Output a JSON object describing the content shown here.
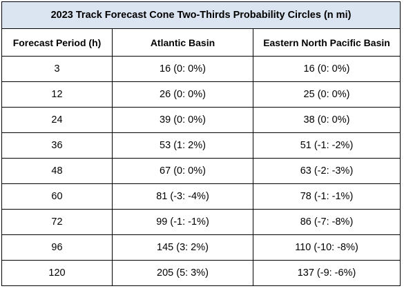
{
  "table": {
    "title": "2023 Track Forecast Cone Two-Thirds Probability Circles (n mi)",
    "headers": [
      "Forecast Period (h)",
      "Atlantic Basin",
      "Eastern North Pacific Basin"
    ],
    "rows": [
      {
        "period": "3",
        "atlantic": "16 (0: 0%)",
        "pacific": "16 (0: 0%)"
      },
      {
        "period": "12",
        "atlantic": "26 (0: 0%)",
        "pacific": "25 (0: 0%)"
      },
      {
        "period": "24",
        "atlantic": "39 (0: 0%)",
        "pacific": "38 (0: 0%)"
      },
      {
        "period": "36",
        "atlantic": "53 (1: 2%)",
        "pacific": "51 (-1: -2%)"
      },
      {
        "period": "48",
        "atlantic": "67 (0: 0%)",
        "pacific": "63 (-2: -3%)"
      },
      {
        "period": "60",
        "atlantic": "81 (-3: -4%)",
        "pacific": "78 (-1: -1%)"
      },
      {
        "period": "72",
        "atlantic": "99 (-1: -1%)",
        "pacific": "86 (-7: -8%)"
      },
      {
        "period": "96",
        "atlantic": "145 (3: 2%)",
        "pacific": "110 (-10: -8%)"
      },
      {
        "period": "120",
        "atlantic": "205 (5: 3%)",
        "pacific": "137 (-9: -6%)"
      }
    ]
  }
}
